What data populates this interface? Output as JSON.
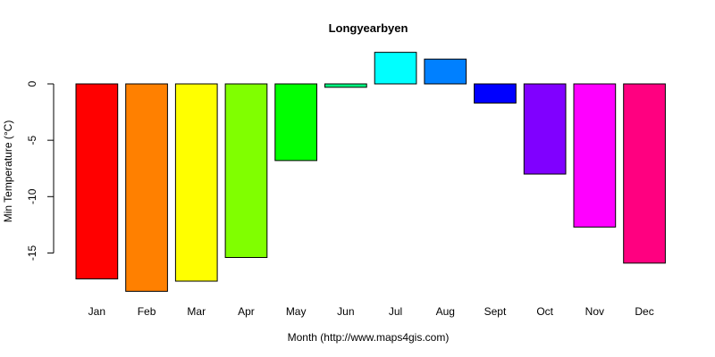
{
  "chart_data": {
    "type": "bar",
    "title": "Longyearbyen",
    "xlabel": "Month (http://www.maps4gis.com)",
    "ylabel": "Min Temperature (°C)",
    "categories": [
      "Jan",
      "Feb",
      "Mar",
      "Apr",
      "May",
      "Jun",
      "Jul",
      "Aug",
      "Sept",
      "Oct",
      "Nov",
      "Dec"
    ],
    "values": [
      -17.3,
      -18.4,
      -17.5,
      -15.4,
      -6.8,
      -0.3,
      2.8,
      2.2,
      -1.7,
      -8.0,
      -12.7,
      -15.9
    ],
    "colors": [
      "#ff0000",
      "#ff8000",
      "#ffff00",
      "#80ff00",
      "#00ff00",
      "#00ff80",
      "#00ffff",
      "#0080ff",
      "#0000ff",
      "#8000ff",
      "#ff00ff",
      "#ff0080"
    ],
    "yticks": [
      0,
      -5,
      -10,
      -15
    ],
    "ytick_labels": [
      "0",
      "-5",
      "-10",
      "-15"
    ],
    "ylim": [
      -18.4,
      2.8
    ],
    "grid": false,
    "legend": "none"
  }
}
